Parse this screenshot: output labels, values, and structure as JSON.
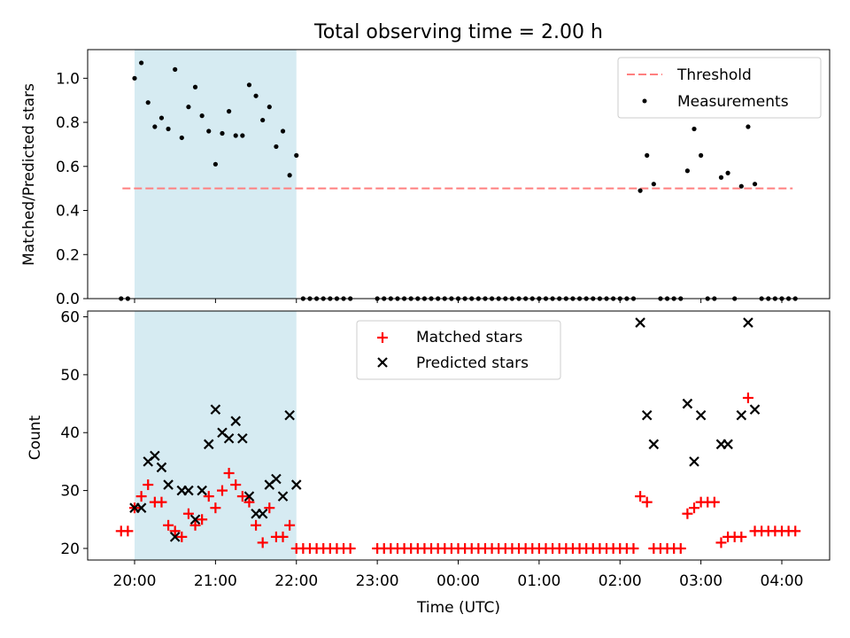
{
  "chart_data": [
    {
      "type": "scatter",
      "title": "Total observing time = 2.00 h",
      "xlabel": "",
      "ylabel": "Matched/Predicted stars",
      "ylim": [
        0,
        1.13
      ],
      "yticks": [
        "0.0",
        "0.2",
        "0.4",
        "0.6",
        "0.8",
        "1.0"
      ],
      "shaded_region": [
        "20:00",
        "22:00"
      ],
      "grid": false,
      "legend_position": "top-right",
      "legend": [
        {
          "label": "Threshold",
          "color": "#ff7f7f",
          "style": "dashed-line"
        },
        {
          "label": "Measurements",
          "color": "#000000",
          "style": "dot"
        }
      ],
      "threshold": {
        "value": 0.5,
        "x_start": "19:51",
        "x_end": "04:08"
      },
      "series": [
        {
          "name": "Measurements",
          "color": "#000000",
          "points": [
            [
              "19:50",
              0
            ],
            [
              "19:55",
              0
            ],
            [
              "20:00",
              1.0
            ],
            [
              "20:05",
              1.07
            ],
            [
              "20:10",
              0.89
            ],
            [
              "20:15",
              0.78
            ],
            [
              "20:20",
              0.82
            ],
            [
              "20:25",
              0.77
            ],
            [
              "20:30",
              1.04
            ],
            [
              "20:35",
              0.73
            ],
            [
              "20:40",
              0.87
            ],
            [
              "20:45",
              0.96
            ],
            [
              "20:50",
              0.83
            ],
            [
              "20:55",
              0.76
            ],
            [
              "21:00",
              0.61
            ],
            [
              "21:05",
              0.75
            ],
            [
              "21:10",
              0.85
            ],
            [
              "21:15",
              0.74
            ],
            [
              "21:20",
              0.74
            ],
            [
              "21:25",
              0.97
            ],
            [
              "21:30",
              0.92
            ],
            [
              "21:35",
              0.81
            ],
            [
              "21:40",
              0.87
            ],
            [
              "21:45",
              0.69
            ],
            [
              "21:50",
              0.76
            ],
            [
              "21:55",
              0.56
            ],
            [
              "22:00",
              0.65
            ],
            [
              "22:05",
              0
            ],
            [
              "22:10",
              0
            ],
            [
              "22:15",
              0
            ],
            [
              "22:20",
              0
            ],
            [
              "22:25",
              0
            ],
            [
              "22:30",
              0
            ],
            [
              "22:35",
              0
            ],
            [
              "22:40",
              0
            ],
            [
              "23:00",
              0
            ],
            [
              "23:05",
              0
            ],
            [
              "23:10",
              0
            ],
            [
              "23:15",
              0
            ],
            [
              "23:20",
              0
            ],
            [
              "23:25",
              0
            ],
            [
              "23:30",
              0
            ],
            [
              "23:35",
              0
            ],
            [
              "23:40",
              0
            ],
            [
              "23:45",
              0
            ],
            [
              "23:50",
              0
            ],
            [
              "23:55",
              0
            ],
            [
              "00:00",
              0
            ],
            [
              "00:05",
              0
            ],
            [
              "00:10",
              0
            ],
            [
              "00:15",
              0
            ],
            [
              "00:20",
              0
            ],
            [
              "00:25",
              0
            ],
            [
              "00:30",
              0
            ],
            [
              "00:35",
              0
            ],
            [
              "00:40",
              0
            ],
            [
              "00:45",
              0
            ],
            [
              "00:50",
              0
            ],
            [
              "00:55",
              0
            ],
            [
              "01:00",
              0
            ],
            [
              "01:05",
              0
            ],
            [
              "01:10",
              0
            ],
            [
              "01:15",
              0
            ],
            [
              "01:20",
              0
            ],
            [
              "01:25",
              0
            ],
            [
              "01:30",
              0
            ],
            [
              "01:35",
              0
            ],
            [
              "01:40",
              0
            ],
            [
              "01:45",
              0
            ],
            [
              "01:50",
              0
            ],
            [
              "01:55",
              0
            ],
            [
              "02:00",
              0
            ],
            [
              "02:05",
              0
            ],
            [
              "02:10",
              0
            ],
            [
              "02:15",
              0.49
            ],
            [
              "02:20",
              0.65
            ],
            [
              "02:25",
              0.52
            ],
            [
              "02:30",
              0
            ],
            [
              "02:35",
              0
            ],
            [
              "02:40",
              0
            ],
            [
              "02:45",
              0
            ],
            [
              "02:50",
              0.58
            ],
            [
              "02:55",
              0.77
            ],
            [
              "03:00",
              0.65
            ],
            [
              "03:05",
              0
            ],
            [
              "03:10",
              0
            ],
            [
              "03:15",
              0.55
            ],
            [
              "03:20",
              0.57
            ],
            [
              "03:25",
              0
            ],
            [
              "03:30",
              0.51
            ],
            [
              "03:35",
              0.78
            ],
            [
              "03:40",
              0.52
            ],
            [
              "03:45",
              0
            ],
            [
              "03:50",
              0
            ],
            [
              "03:55",
              0
            ],
            [
              "04:00",
              0
            ],
            [
              "04:05",
              0
            ],
            [
              "04:10",
              0
            ]
          ]
        }
      ]
    },
    {
      "type": "scatter",
      "title": "",
      "xlabel": "Time (UTC)",
      "ylabel": "Count",
      "ylim": [
        18,
        61
      ],
      "yticks": [
        "20",
        "30",
        "40",
        "50",
        "60"
      ],
      "xticks": [
        "20:00",
        "21:00",
        "22:00",
        "23:00",
        "00:00",
        "01:00",
        "02:00",
        "03:00",
        "04:00"
      ],
      "shaded_region": [
        "20:00",
        "22:00"
      ],
      "grid": false,
      "legend_position": "top-center",
      "legend": [
        {
          "label": "Matched stars",
          "color": "#ff0000",
          "style": "plus"
        },
        {
          "label": "Predicted stars",
          "color": "#000000",
          "style": "cross"
        }
      ],
      "series": [
        {
          "name": "Matched stars",
          "color": "#ff0000",
          "marker": "plus",
          "points": [
            [
              "19:50",
              23
            ],
            [
              "19:55",
              23
            ],
            [
              "20:00",
              27
            ],
            [
              "20:05",
              29
            ],
            [
              "20:10",
              31
            ],
            [
              "20:15",
              28
            ],
            [
              "20:20",
              28
            ],
            [
              "20:25",
              24
            ],
            [
              "20:30",
              23
            ],
            [
              "20:35",
              22
            ],
            [
              "20:40",
              26
            ],
            [
              "20:45",
              24
            ],
            [
              "20:50",
              25
            ],
            [
              "20:55",
              29
            ],
            [
              "21:00",
              27
            ],
            [
              "21:05",
              30
            ],
            [
              "21:10",
              33
            ],
            [
              "21:15",
              31
            ],
            [
              "21:20",
              29
            ],
            [
              "21:25",
              28
            ],
            [
              "21:30",
              24
            ],
            [
              "21:35",
              21
            ],
            [
              "21:40",
              27
            ],
            [
              "21:45",
              22
            ],
            [
              "21:50",
              22
            ],
            [
              "21:55",
              24
            ],
            [
              "22:00",
              20
            ],
            [
              "22:05",
              20
            ],
            [
              "22:10",
              20
            ],
            [
              "22:15",
              20
            ],
            [
              "22:20",
              20
            ],
            [
              "22:25",
              20
            ],
            [
              "22:30",
              20
            ],
            [
              "22:35",
              20
            ],
            [
              "22:40",
              20
            ],
            [
              "23:00",
              20
            ],
            [
              "23:05",
              20
            ],
            [
              "23:10",
              20
            ],
            [
              "23:15",
              20
            ],
            [
              "23:20",
              20
            ],
            [
              "23:25",
              20
            ],
            [
              "23:30",
              20
            ],
            [
              "23:35",
              20
            ],
            [
              "23:40",
              20
            ],
            [
              "23:45",
              20
            ],
            [
              "23:50",
              20
            ],
            [
              "23:55",
              20
            ],
            [
              "00:00",
              20
            ],
            [
              "00:05",
              20
            ],
            [
              "00:10",
              20
            ],
            [
              "00:15",
              20
            ],
            [
              "00:20",
              20
            ],
            [
              "00:25",
              20
            ],
            [
              "00:30",
              20
            ],
            [
              "00:35",
              20
            ],
            [
              "00:40",
              20
            ],
            [
              "00:45",
              20
            ],
            [
              "00:50",
              20
            ],
            [
              "00:55",
              20
            ],
            [
              "01:00",
              20
            ],
            [
              "01:05",
              20
            ],
            [
              "01:10",
              20
            ],
            [
              "01:15",
              20
            ],
            [
              "01:20",
              20
            ],
            [
              "01:25",
              20
            ],
            [
              "01:30",
              20
            ],
            [
              "01:35",
              20
            ],
            [
              "01:40",
              20
            ],
            [
              "01:45",
              20
            ],
            [
              "01:50",
              20
            ],
            [
              "01:55",
              20
            ],
            [
              "02:00",
              20
            ],
            [
              "02:05",
              20
            ],
            [
              "02:10",
              20
            ],
            [
              "02:15",
              29
            ],
            [
              "02:20",
              28
            ],
            [
              "02:25",
              20
            ],
            [
              "02:30",
              20
            ],
            [
              "02:35",
              20
            ],
            [
              "02:40",
              20
            ],
            [
              "02:45",
              20
            ],
            [
              "02:50",
              26
            ],
            [
              "02:55",
              27
            ],
            [
              "03:00",
              28
            ],
            [
              "03:05",
              28
            ],
            [
              "03:10",
              28
            ],
            [
              "03:15",
              21
            ],
            [
              "03:20",
              22
            ],
            [
              "03:25",
              22
            ],
            [
              "03:30",
              22
            ],
            [
              "03:35",
              46
            ],
            [
              "03:40",
              23
            ],
            [
              "03:45",
              23
            ],
            [
              "03:50",
              23
            ],
            [
              "03:55",
              23
            ],
            [
              "04:00",
              23
            ],
            [
              "04:05",
              23
            ],
            [
              "04:10",
              23
            ]
          ]
        },
        {
          "name": "Predicted stars",
          "color": "#000000",
          "marker": "cross",
          "points": [
            [
              "20:00",
              27
            ],
            [
              "20:05",
              27
            ],
            [
              "20:10",
              35
            ],
            [
              "20:15",
              36
            ],
            [
              "20:20",
              34
            ],
            [
              "20:25",
              31
            ],
            [
              "20:30",
              22
            ],
            [
              "20:35",
              30
            ],
            [
              "20:40",
              30
            ],
            [
              "20:45",
              25
            ],
            [
              "20:50",
              30
            ],
            [
              "20:55",
              38
            ],
            [
              "21:00",
              44
            ],
            [
              "21:05",
              40
            ],
            [
              "21:10",
              39
            ],
            [
              "21:15",
              42
            ],
            [
              "21:20",
              39
            ],
            [
              "21:25",
              29
            ],
            [
              "21:30",
              26
            ],
            [
              "21:35",
              26
            ],
            [
              "21:40",
              31
            ],
            [
              "21:45",
              32
            ],
            [
              "21:50",
              29
            ],
            [
              "21:55",
              43
            ],
            [
              "22:00",
              31
            ],
            [
              "02:15",
              59
            ],
            [
              "02:20",
              43
            ],
            [
              "02:25",
              38
            ],
            [
              "02:50",
              45
            ],
            [
              "02:55",
              35
            ],
            [
              "03:00",
              43
            ],
            [
              "03:15",
              38
            ],
            [
              "03:20",
              38
            ],
            [
              "03:30",
              43
            ],
            [
              "03:35",
              59
            ],
            [
              "03:40",
              44
            ]
          ]
        }
      ]
    }
  ]
}
